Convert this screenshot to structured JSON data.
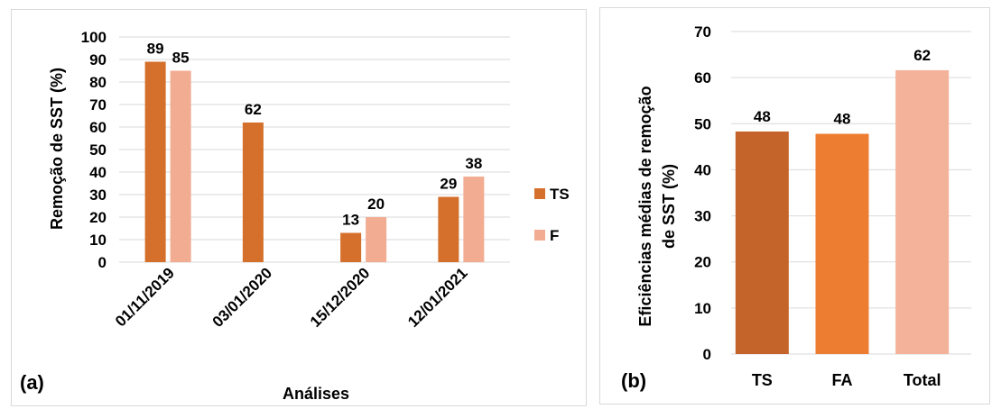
{
  "chart_data": [
    {
      "type": "bar",
      "panel_label": "(a)",
      "title": "",
      "xlabel": "Análises",
      "ylabel": "Remoção de SST (%)",
      "ylim": [
        0,
        100
      ],
      "yticks": [
        0,
        10,
        20,
        30,
        40,
        50,
        60,
        70,
        80,
        90,
        100
      ],
      "grid": true,
      "legend_position": "right",
      "categories": [
        "01/11/2019",
        "03/01/2020",
        "15/12/2020",
        "12/01/2021"
      ],
      "series": [
        {
          "name": "TS",
          "color": "#d4702b",
          "values": [
            89,
            62,
            13,
            29
          ]
        },
        {
          "name": "F",
          "color": "#f2ac92",
          "values": [
            85,
            null,
            20,
            38
          ]
        }
      ]
    },
    {
      "type": "bar",
      "panel_label": "(b)",
      "title": "",
      "xlabel": "",
      "ylabel_lines": [
        "Eficiências médias de remoção",
        "de SST (%)"
      ],
      "ylim": [
        0,
        70
      ],
      "yticks": [
        0,
        10,
        20,
        30,
        40,
        50,
        60,
        70
      ],
      "grid": true,
      "categories": [
        "TS",
        "FA",
        "Total"
      ],
      "values": [
        48,
        48,
        62
      ],
      "bar_values": [
        48.3,
        47.8,
        61.6
      ],
      "colors": [
        "#c5642a",
        "#ed7d31",
        "#f4b29a"
      ]
    }
  ]
}
